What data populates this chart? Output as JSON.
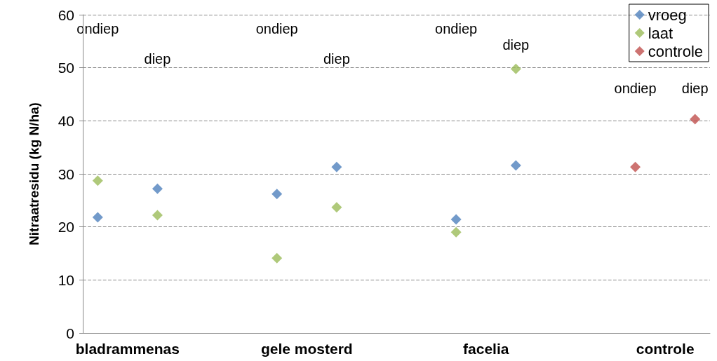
{
  "chart_data": {
    "type": "scatter",
    "ylabel": "Nitraatresidu (kg N/ha)",
    "categories": [
      null,
      "bladrammenas",
      null,
      null,
      null,
      null,
      null,
      "gele mosterd",
      null,
      null,
      null,
      null,
      null,
      "facelia",
      null,
      null,
      null,
      null,
      null,
      "controle",
      null
    ],
    "ylim": [
      0,
      60
    ],
    "yticks": [
      0,
      10,
      20,
      30,
      40,
      50,
      60
    ],
    "series": [
      {
        "name": "vroeg",
        "color": "#4f81bd",
        "values": [
          21.8,
          null,
          27.2,
          null,
          null,
          null,
          26.2,
          null,
          31.3,
          null,
          null,
          null,
          21.4,
          null,
          31.6,
          null,
          null,
          null,
          null,
          null,
          null
        ]
      },
      {
        "name": "laat",
        "color": "#9bbb59",
        "values": [
          28.7,
          null,
          22.2,
          null,
          null,
          null,
          14.1,
          null,
          23.7,
          null,
          null,
          null,
          19.0,
          null,
          49.8,
          null,
          null,
          null,
          null,
          null,
          null
        ]
      },
      {
        "name": "controle",
        "color": "#c0504d",
        "values": [
          null,
          null,
          null,
          null,
          null,
          null,
          null,
          null,
          null,
          null,
          null,
          null,
          null,
          null,
          null,
          null,
          null,
          null,
          31.3,
          null,
          40.3
        ]
      }
    ],
    "annotations": [
      "ondiep",
      "diep",
      "ondiep",
      "diep",
      "ondiep",
      "diep",
      "ondiep",
      "diep"
    ],
    "grid": "y",
    "legend": "top right",
    "marker": "diamond"
  }
}
